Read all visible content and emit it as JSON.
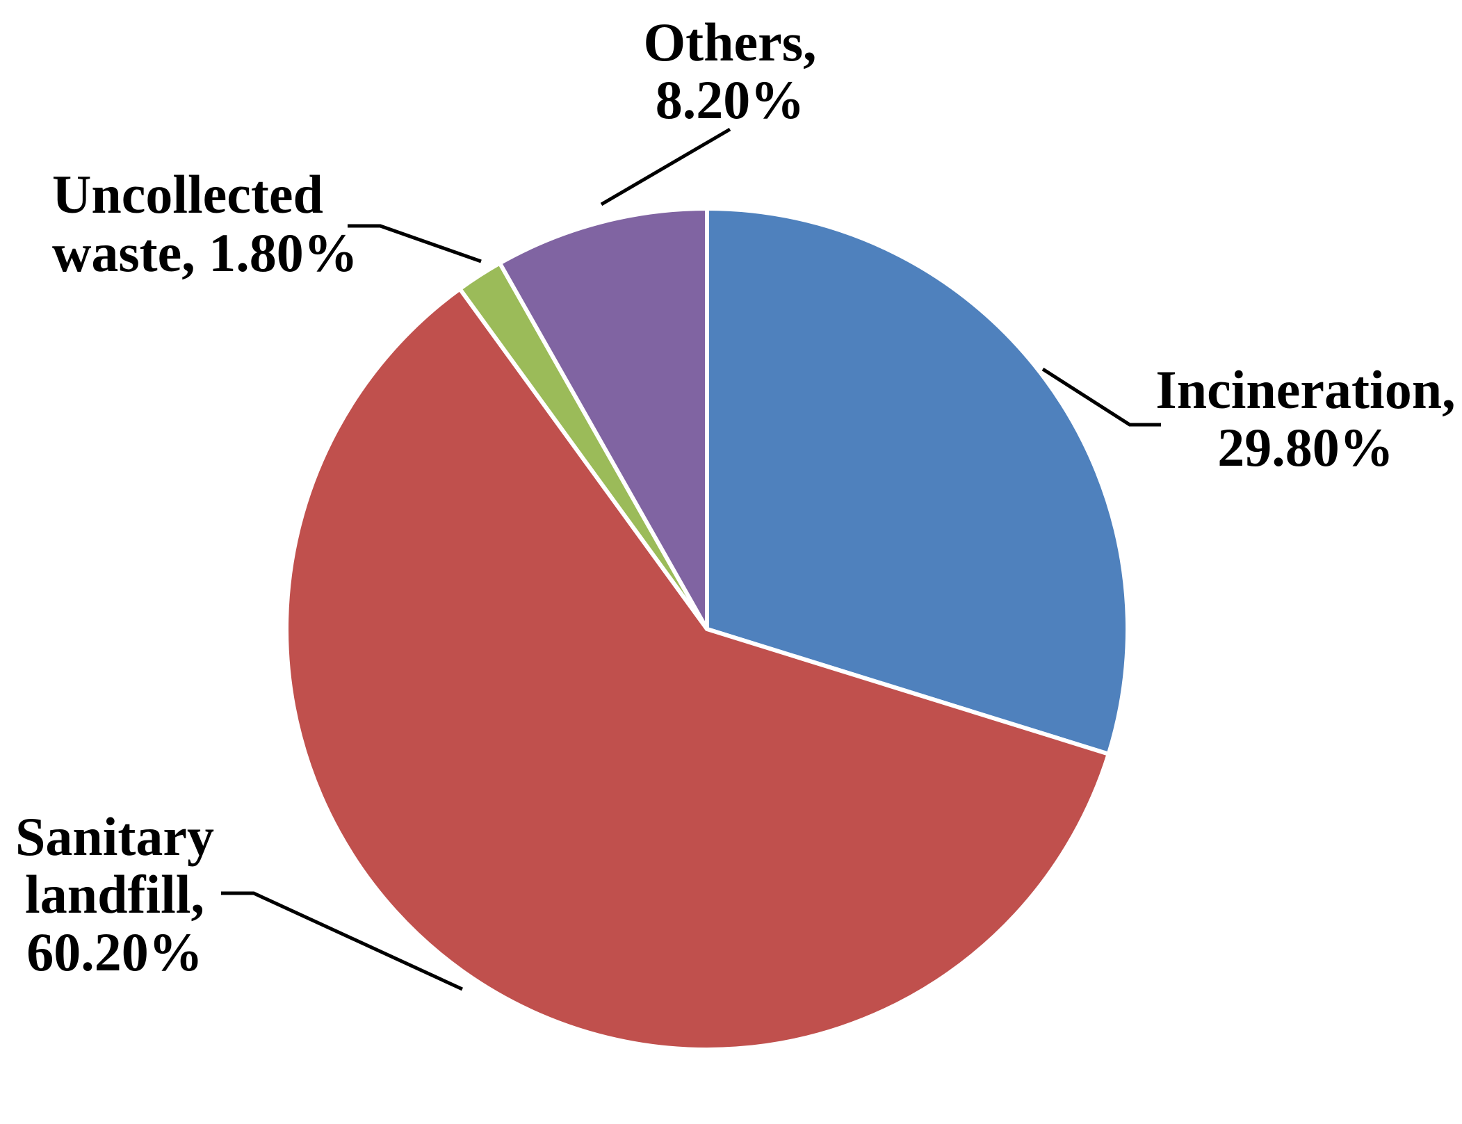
{
  "chart_data": {
    "type": "pie",
    "slices": [
      {
        "label_line1": "Incineration,",
        "label_line2": "29.80%",
        "value": 29.8,
        "color": "#4F81BD"
      },
      {
        "label_line1": "Sanitary",
        "label_line2": "landfill,",
        "label_line3": "60.20%",
        "value": 60.2,
        "color": "#C0504D"
      },
      {
        "label_line1": "Uncollected",
        "label_line2": "waste, 1.80%",
        "value": 1.8,
        "color": "#9BBB59"
      },
      {
        "label_line1": "Others,",
        "label_line2": "8.20%",
        "value": 8.2,
        "color": "#8064A2"
      }
    ],
    "start_angle": "12 o'clock",
    "direction": "clockwise",
    "legend": "none",
    "data_labels": "outside with leader lines"
  }
}
